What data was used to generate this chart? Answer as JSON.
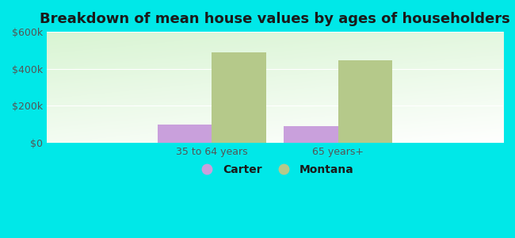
{
  "title": "Breakdown of mean house values by ages of householders",
  "categories": [
    "35 to 64 years",
    "65 years+"
  ],
  "carter_values": [
    100000,
    90000
  ],
  "montana_values": [
    490000,
    445000
  ],
  "carter_color": "#c9a0dc",
  "montana_color": "#b5c98a",
  "ylim": [
    0,
    600000
  ],
  "ytick_values": [
    0,
    200000,
    400000,
    600000
  ],
  "ytick_labels": [
    "$0",
    "$200k",
    "$400k",
    "$600k"
  ],
  "background_color": "#00e8e8",
  "legend_labels": [
    "Carter",
    "Montana"
  ],
  "bar_width": 0.28,
  "group_centers": [
    0.35,
    1.0
  ],
  "title_fontsize": 13,
  "tick_fontsize": 9,
  "legend_fontsize": 10
}
